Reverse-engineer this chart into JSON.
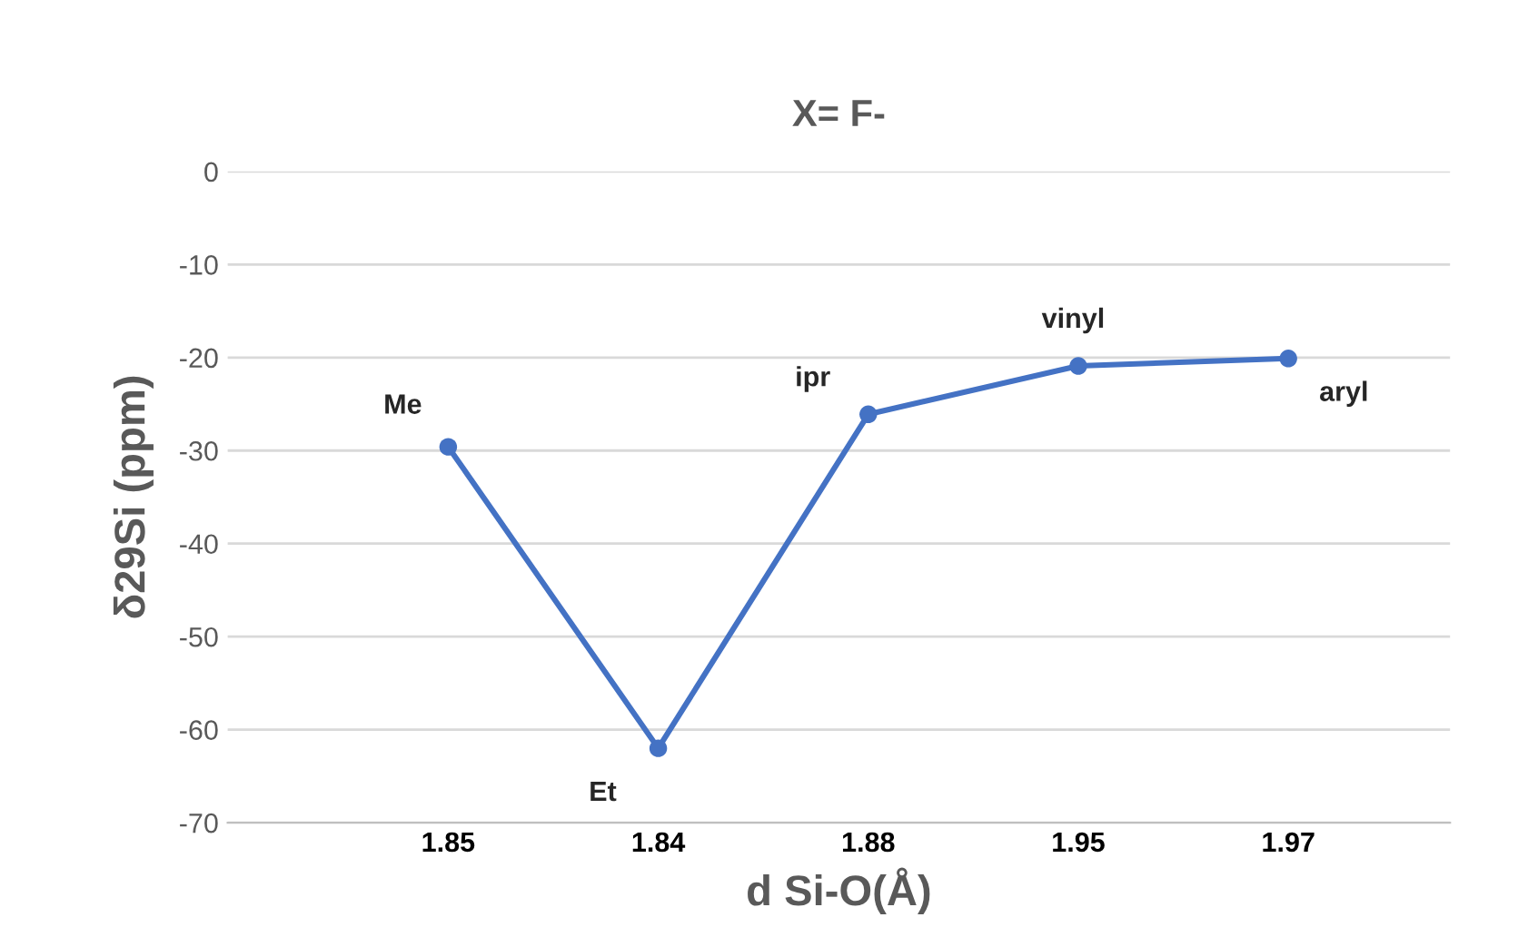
{
  "chart_data": {
    "type": "line",
    "title": "X= F-",
    "xlabel": "d Si-O(Å)",
    "ylabel": "δ29Si (ppm)",
    "categories": [
      "1.85",
      "1.84",
      "1.88",
      "1.95",
      "1.97"
    ],
    "series": [
      {
        "color": "#4472c4",
        "values": [
          -29.6,
          -62.0,
          -26.1,
          -20.9,
          -20.1
        ]
      }
    ],
    "ylim": [
      -70,
      0
    ],
    "yticks": [
      -70,
      -60,
      -50,
      -40,
      -30,
      -20,
      -10,
      0
    ],
    "grid": "y",
    "marker": "circle",
    "line_style": "solid",
    "annotations": [
      {
        "text": "Me",
        "x": "1.85",
        "y": -29.6
      },
      {
        "text": "Et",
        "x": "1.84",
        "y": -62.0
      },
      {
        "text": "ipr",
        "x": "1.88",
        "y": -26.1
      },
      {
        "text": "vinyl",
        "x": "1.95",
        "y": -20.9
      },
      {
        "text": "aryl",
        "x": "1.97",
        "y": -20.1
      }
    ]
  }
}
